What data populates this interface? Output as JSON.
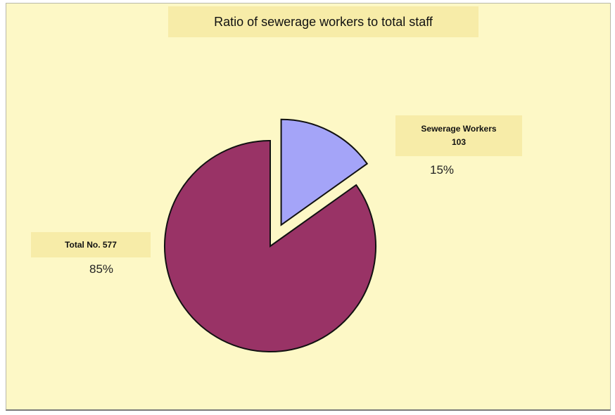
{
  "colors": {
    "background": "#fdf8c6",
    "label_box": "#f7eca8",
    "slice_sewerage": "#a4a4f8",
    "slice_total": "#993366",
    "outline": "#111111"
  },
  "chart_data": {
    "type": "pie",
    "title": "Ratio of sewerage workers to total staff",
    "slices": [
      {
        "label": "Sewerage Workers",
        "value": 103,
        "percent": "15%",
        "exploded": true
      },
      {
        "label": "Total No.",
        "value": 577,
        "percent": "85%",
        "exploded": false
      }
    ],
    "labels": {
      "sewerage_line1": "Sewerage Workers",
      "sewerage_line2": "103",
      "total": "Total No. 577"
    },
    "legend": "none"
  }
}
